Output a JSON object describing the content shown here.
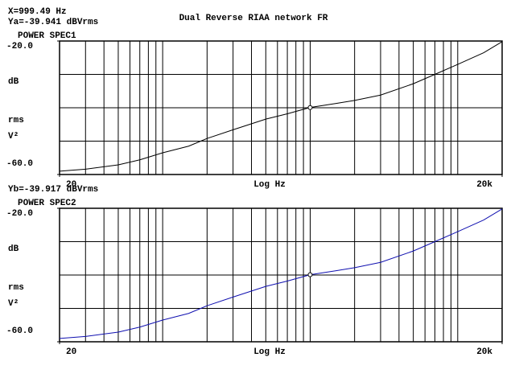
{
  "title": "Dual Reverse RIAA network FR",
  "cursor_x": {
    "value": 999.49,
    "label": "X=999.49 Hz"
  },
  "chart_data": [
    {
      "type": "line",
      "name": "POWER SPEC1",
      "cursor_y": {
        "value": -39.941,
        "label": "Ya=-39.941 dBVrms"
      },
      "x_label": "Log Hz",
      "y_label": [
        "dB",
        "rms",
        "V²"
      ],
      "xscale": "log",
      "xlim": [
        20,
        20000
      ],
      "xticks": [
        20,
        {
          "value": 20000,
          "label": "20k"
        }
      ],
      "xgrid": [
        30,
        40,
        50,
        60,
        70,
        80,
        90,
        100,
        200,
        300,
        400,
        500,
        600,
        700,
        800,
        900,
        1000,
        2000,
        3000,
        4000,
        5000,
        6000,
        7000,
        8000,
        9000,
        10000
      ],
      "ylim": [
        -60,
        -20
      ],
      "yticks": [
        {
          "value": -20,
          "label": "-20.0"
        },
        {
          "value": -60,
          "label": "-60.0"
        }
      ],
      "ygrid": [
        -30,
        -40,
        -50
      ],
      "x": [
        20,
        30,
        50,
        70,
        100,
        150,
        200,
        300,
        500,
        700,
        1000,
        1500,
        2000,
        3000,
        5000,
        7000,
        10000,
        15000,
        20000
      ],
      "series": [
        {
          "color": "#000000",
          "values": [
            -59.0,
            -58.4,
            -57.1,
            -55.6,
            -53.5,
            -51.5,
            -49.2,
            -46.6,
            -43.4,
            -41.8,
            -39.9,
            -38.7,
            -37.8,
            -36.2,
            -32.8,
            -30.0,
            -27.0,
            -23.5,
            -20.2
          ]
        }
      ]
    },
    {
      "type": "line",
      "name": "POWER SPEC2",
      "cursor_y": {
        "value": -39.917,
        "label": "Yb=-39.917 dBVrms"
      },
      "x_label": "Log Hz",
      "y_label": [
        "dB",
        "rms",
        "V²"
      ],
      "xscale": "log",
      "xlim": [
        20,
        20000
      ],
      "xticks": [
        20,
        {
          "value": 20000,
          "label": "20k"
        }
      ],
      "xgrid": [
        30,
        40,
        50,
        60,
        70,
        80,
        90,
        100,
        200,
        300,
        400,
        500,
        600,
        700,
        800,
        900,
        1000,
        2000,
        3000,
        4000,
        5000,
        6000,
        7000,
        8000,
        9000,
        10000
      ],
      "ylim": [
        -60,
        -20
      ],
      "yticks": [
        {
          "value": -20,
          "label": "-20.0"
        },
        {
          "value": -60,
          "label": "-60.0"
        }
      ],
      "ygrid": [
        -30,
        -40,
        -50
      ],
      "x": [
        20,
        30,
        50,
        70,
        100,
        150,
        200,
        300,
        500,
        700,
        1000,
        1500,
        2000,
        3000,
        5000,
        7000,
        10000,
        15000,
        20000
      ],
      "series": [
        {
          "color": "#1010b0",
          "values": [
            -59.0,
            -58.4,
            -57.1,
            -55.6,
            -53.5,
            -51.5,
            -49.2,
            -46.6,
            -43.4,
            -41.8,
            -39.9,
            -38.7,
            -37.8,
            -36.2,
            -32.8,
            -30.0,
            -27.0,
            -23.5,
            -20.2
          ]
        }
      ]
    }
  ]
}
